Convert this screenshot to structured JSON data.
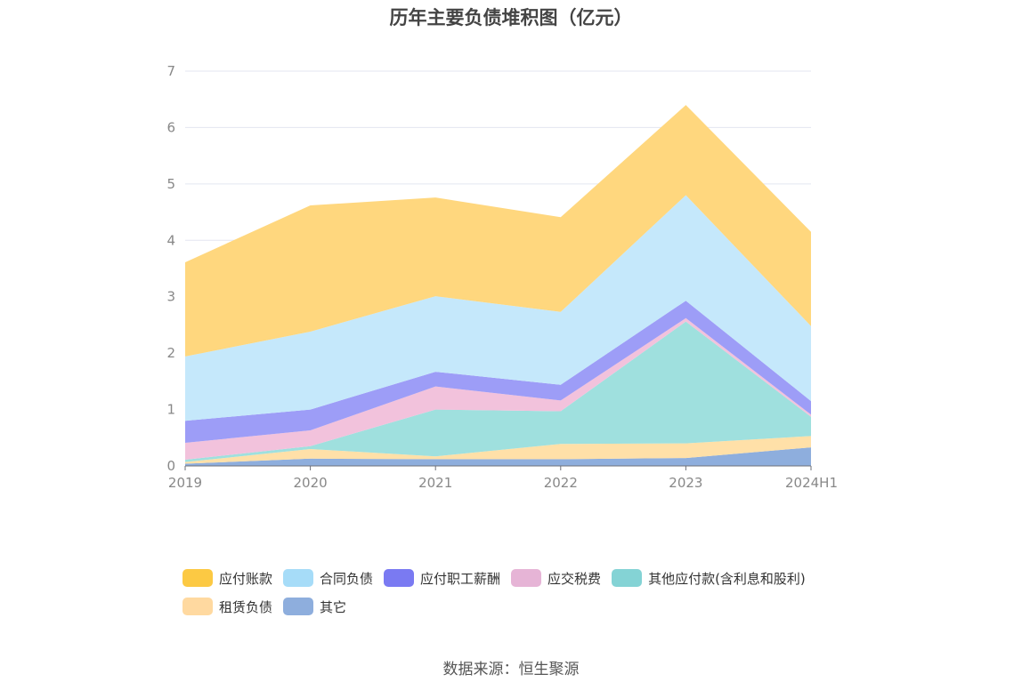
{
  "title": "历年主要负债堆积图（亿元）",
  "source": "数据来源：恒生聚源",
  "chart_data": {
    "type": "area",
    "stacked": true,
    "categories": [
      "2019",
      "2020",
      "2021",
      "2022",
      "2023",
      "2024H1"
    ],
    "ylim": [
      0,
      7
    ],
    "yticks": [
      0,
      1,
      2,
      3,
      4,
      5,
      6,
      7
    ],
    "grid": true,
    "legend_position": "bottom",
    "series": [
      {
        "name": "其它",
        "color": "#8eaedd",
        "values": [
          0.04,
          0.13,
          0.12,
          0.12,
          0.14,
          0.33
        ]
      },
      {
        "name": "租赁负债",
        "color": "#ffe0a8",
        "values": [
          0.03,
          0.17,
          0.05,
          0.27,
          0.26,
          0.2
        ]
      },
      {
        "name": "其他应付款(含利息和股利)",
        "color": "#9fe0de",
        "values": [
          0.04,
          0.05,
          0.83,
          0.58,
          2.16,
          0.34
        ]
      },
      {
        "name": "应交税费",
        "color": "#f2c2dc",
        "values": [
          0.3,
          0.28,
          0.41,
          0.19,
          0.06,
          0.04
        ]
      },
      {
        "name": "应付职工薪酬",
        "color": "#9d9df7",
        "values": [
          0.39,
          0.37,
          0.26,
          0.28,
          0.31,
          0.24
        ]
      },
      {
        "name": "合同负债",
        "color": "#c5e8fb",
        "values": [
          1.14,
          1.38,
          1.34,
          1.29,
          1.87,
          1.33
        ]
      },
      {
        "name": "应付账款",
        "color": "#ffd77e",
        "values": [
          1.67,
          2.24,
          1.75,
          1.68,
          1.6,
          1.67
        ]
      }
    ]
  },
  "legend": [
    {
      "label": "应付账款",
      "color": "#fcc943"
    },
    {
      "label": "合同负债",
      "color": "#a6dcf8"
    },
    {
      "label": "应付职工薪酬",
      "color": "#7a7af2"
    },
    {
      "label": "应交税费",
      "color": "#e6b4d6"
    },
    {
      "label": "其他应付款(含利息和股利)",
      "color": "#84d3d5"
    },
    {
      "label": "租赁负债",
      "color": "#ffd9a0"
    },
    {
      "label": "其它",
      "color": "#8eaedd"
    }
  ]
}
